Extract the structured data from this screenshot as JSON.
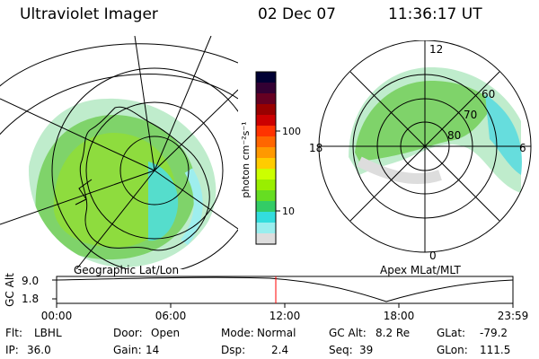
{
  "header": {
    "instrument": "Ultraviolet Imager",
    "date": "02 Dec 07",
    "time": "11:36:17 UT"
  },
  "colorbar": {
    "unit_label": "photon cm⁻²s⁻¹",
    "ticks": [
      "100",
      "10"
    ],
    "colors": [
      "#000033",
      "#330033",
      "#660022",
      "#990000",
      "#cc0000",
      "#ff3300",
      "#ff6600",
      "#ff9900",
      "#ffcc00",
      "#ccff00",
      "#99ee00",
      "#66dd22",
      "#33cc66",
      "#33dddd",
      "#99eeee",
      "#dddddd"
    ]
  },
  "left_map": {
    "caption": "Geographic Lat/Lon"
  },
  "right_map": {
    "caption": "Apex MLat/MLT",
    "mlt_labels": {
      "top": "12",
      "left": "18",
      "right": "6",
      "bottom": "0"
    },
    "lat_labels": [
      "60",
      "70",
      "80"
    ]
  },
  "timeline": {
    "y_axis_title": "GC Alt",
    "y_ticks": [
      "9.0",
      "1.8"
    ],
    "x_ticks": [
      "00:00",
      "06:00",
      "12:00",
      "18:00",
      "23:59"
    ],
    "marker_color": "#ff0000"
  },
  "info": {
    "flt_label": "Flt:",
    "flt_value": "LBHL",
    "ip_label": "IP:",
    "ip_value": "36.0",
    "door_label": "Door:",
    "door_value": "Open",
    "gain_label": "Gain:",
    "gain_value": "14",
    "mode_label": "Mode:",
    "mode_value": "Normal",
    "dsp_label": "Dsp:",
    "dsp_value": "2.4",
    "gcalt_label": "GC Alt:",
    "gcalt_value": "8.2 Re",
    "seq_label": "Seq:",
    "seq_value": "39",
    "glat_label": "GLat:",
    "glat_value": "-79.2",
    "glon_label": "GLon:",
    "glon_value": "111.5"
  }
}
